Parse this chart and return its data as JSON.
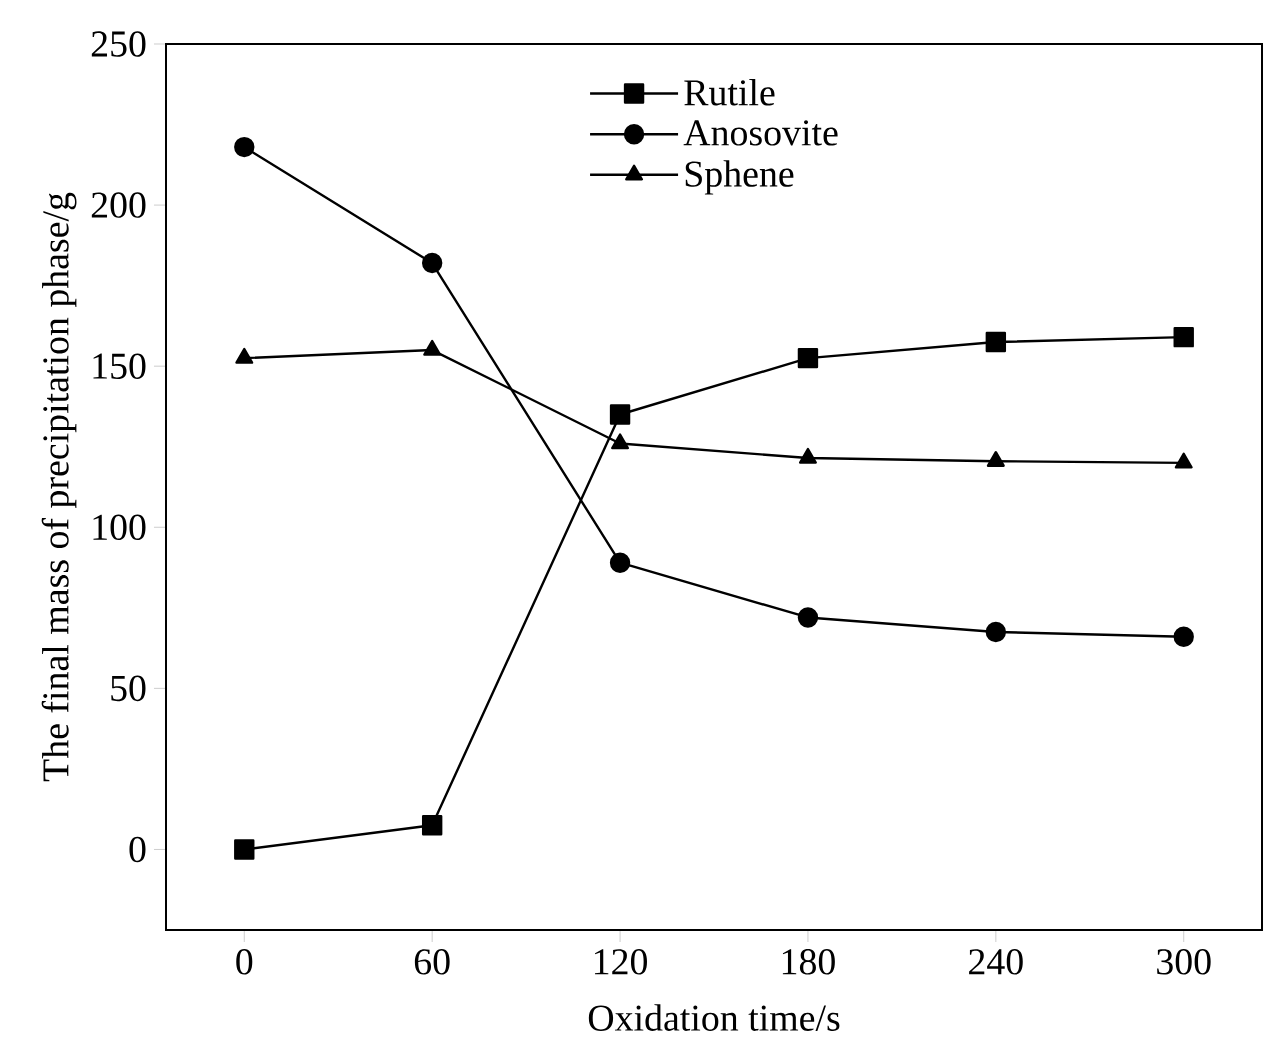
{
  "chart_data": {
    "type": "line",
    "xlabel": "Oxidation time/s",
    "ylabel": "The final mass of precipitation phase/g",
    "x": [
      0,
      60,
      120,
      180,
      240,
      300
    ],
    "series": [
      {
        "name": "Rutile",
        "color": "#000000",
        "marker": "square",
        "values": [
          0,
          7.5,
          135,
          152.5,
          157.5,
          159
        ]
      },
      {
        "name": "Anosovite",
        "color": "#000000",
        "marker": "circle",
        "values": [
          218,
          182,
          89,
          72,
          67.5,
          66
        ]
      },
      {
        "name": "Sphene",
        "color": "#000000",
        "marker": "triangle",
        "values": [
          152.5,
          155,
          126,
          121.5,
          120.5,
          120
        ]
      }
    ],
    "xlim": [
      -25,
      325
    ],
    "ylim": [
      -25,
      250
    ],
    "xticks": [
      0,
      60,
      120,
      180,
      240,
      300
    ],
    "yticks": [
      0,
      50,
      100,
      150,
      200,
      250
    ],
    "legend": "top",
    "line_style": "solid",
    "grid": false
  }
}
